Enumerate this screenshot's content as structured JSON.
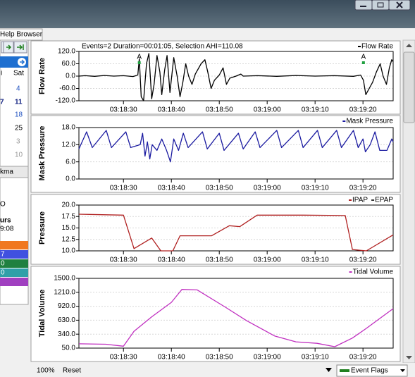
{
  "window": {
    "menu_tab": "Help Browser"
  },
  "left_panel": {
    "items": [
      "i",
      "Sat",
      "4",
      "7",
      "11",
      "18",
      "25",
      "3",
      "10",
      "kma",
      "O",
      "urs",
      "9:08",
      "7",
      "0",
      "0"
    ]
  },
  "chart_data": [
    {
      "type": "line",
      "header": "Events=2 Duration=00:01:05, Selection AHI=110.08",
      "ylabel": "Flow Rate",
      "x": [
        20.7,
        22,
        24,
        26,
        28,
        30,
        32,
        33.0,
        33.3,
        33.7,
        34.2,
        34.8,
        35.3,
        35.9,
        36.4,
        37.0,
        37.6,
        38.0,
        38.6,
        39.1,
        39.7,
        40.5,
        41.2,
        41.8,
        42.4,
        43.0,
        43.6,
        44.3,
        45.0,
        46.2,
        47.0,
        47.6,
        48.3,
        49.0,
        50.0,
        50.8,
        51.5,
        52.2,
        53.5,
        54.5,
        55.0,
        58,
        62,
        66,
        70,
        74,
        78,
        79.5,
        80.1,
        80.6,
        81.3,
        82.0,
        82.8,
        83.6,
        84.2,
        84.9,
        85.5,
        86.0,
        86.3
      ],
      "series": [
        {
          "name": "Flow Rate",
          "color": "#000000",
          "values": [
            0,
            2,
            -1,
            3,
            0,
            2,
            -2,
            5,
            85,
            -100,
            -120,
            60,
            110,
            -110,
            -40,
            100,
            20,
            -90,
            30,
            100,
            -80,
            90,
            0,
            -100,
            -30,
            60,
            0,
            -40,
            10,
            60,
            80,
            20,
            -60,
            -20,
            5,
            40,
            -40,
            -10,
            0,
            10,
            0,
            2,
            -1,
            3,
            0,
            2,
            -1,
            5,
            -20,
            -90,
            -60,
            -30,
            20,
            60,
            0,
            -40,
            40,
            80,
            70
          ]
        }
      ],
      "annotations": [
        {
          "x": 33.3,
          "label": "A"
        },
        {
          "x": 80.1,
          "label": "A"
        }
      ],
      "xlim": [
        20.7,
        86.3
      ],
      "xticks": [
        {
          "value": 30,
          "label": "03:18:30"
        },
        {
          "value": 40,
          "label": "03:18:40"
        },
        {
          "value": 50,
          "label": "03:18:50"
        },
        {
          "value": 60,
          "label": "03:19:00"
        },
        {
          "value": 70,
          "label": "03:19:10"
        },
        {
          "value": 80,
          "label": "03:19:20"
        }
      ],
      "ylim": [
        -120,
        120
      ],
      "yticks": [
        {
          "value": 120,
          "label": "120.0"
        },
        {
          "value": 60,
          "label": "60.0"
        },
        {
          "value": 0,
          "label": "0.0"
        },
        {
          "value": -60,
          "label": "-60.0"
        },
        {
          "value": -120,
          "label": "-120.0"
        }
      ],
      "grid": true
    },
    {
      "type": "line",
      "ylabel": "Mask Pressure",
      "x": [
        20.7,
        22.3,
        23.5,
        26.4,
        27.5,
        30.5,
        31.5,
        33.5,
        34.0,
        34.5,
        35.0,
        35.5,
        36.0,
        37.0,
        38.0,
        39.0,
        39.8,
        40.5,
        41.5,
        42.5,
        43.5,
        46.5,
        47.5,
        50.0,
        51.0,
        54.0,
        55.0,
        57.5,
        58.5,
        62.0,
        63,
        66.5,
        67.5,
        70.5,
        71.5,
        74.5,
        75.5,
        78,
        79,
        80,
        80.5,
        81.5,
        82.5,
        83.5,
        85.0,
        86.0,
        86.3
      ],
      "series": [
        {
          "name": "Mask Pressure",
          "color": "#1a1aa0",
          "values": [
            10.5,
            16.5,
            11,
            17,
            11,
            16.5,
            11,
            12,
            16,
            8,
            13,
            7,
            12,
            10,
            14,
            10,
            6,
            14,
            10,
            16,
            11,
            16.5,
            10.5,
            16,
            10,
            16,
            10.5,
            16.5,
            11,
            17,
            11,
            17,
            11,
            17,
            11,
            17,
            11,
            17,
            11,
            14,
            9.5,
            12,
            16.5,
            10,
            10,
            14,
            13
          ]
        }
      ],
      "xlim": [
        20.7,
        86.3
      ],
      "xticks": [
        {
          "value": 30,
          "label": "03:18:30"
        },
        {
          "value": 40,
          "label": "03:18:40"
        },
        {
          "value": 50,
          "label": "03:18:50"
        },
        {
          "value": 60,
          "label": "03:19:00"
        },
        {
          "value": 70,
          "label": "03:19:10"
        },
        {
          "value": 80,
          "label": "03:19:20"
        }
      ],
      "ylim": [
        0,
        18
      ],
      "yticks": [
        {
          "value": 18,
          "label": "18.0"
        },
        {
          "value": 12,
          "label": "12.0"
        },
        {
          "value": 6,
          "label": "6.0"
        },
        {
          "value": 0,
          "label": "0.0"
        }
      ],
      "grid": true
    },
    {
      "type": "line",
      "ylabel": "Pressure",
      "x": [
        20.7,
        30,
        32.2,
        35.9,
        37.8,
        40.3,
        41.8,
        48.4,
        52.1,
        54.3,
        57.9,
        67.5,
        76.3,
        77.8,
        80.7,
        86.3
      ],
      "series": [
        {
          "name": "IPAP",
          "color": "#b02020",
          "values": [
            18,
            17.8,
            10.5,
            12.8,
            10,
            10,
            13.3,
            13.3,
            15.5,
            15.3,
            17.8,
            17.8,
            17.7,
            10.3,
            10,
            13.5
          ]
        },
        {
          "name": "EPAP",
          "color": "#333333",
          "values": [
            null,
            null,
            null,
            null,
            null,
            null,
            null,
            null,
            null,
            null,
            null,
            null,
            null,
            null,
            null,
            null
          ]
        }
      ],
      "xlim": [
        20.7,
        86.3
      ],
      "xticks": [
        {
          "value": 30,
          "label": "03:18:30"
        },
        {
          "value": 40,
          "label": "03:18:40"
        },
        {
          "value": 50,
          "label": "03:18:50"
        },
        {
          "value": 60,
          "label": "03:19:00"
        },
        {
          "value": 70,
          "label": "03:19:10"
        },
        {
          "value": 80,
          "label": "03:19:20"
        }
      ],
      "ylim": [
        10,
        20
      ],
      "yticks": [
        {
          "value": 20,
          "label": "20.0"
        },
        {
          "value": 17.5,
          "label": "17.5"
        },
        {
          "value": 15,
          "label": "15.0"
        },
        {
          "value": 12.5,
          "label": "12.5"
        },
        {
          "value": 10,
          "label": "10.0"
        }
      ],
      "grid": true
    },
    {
      "type": "line",
      "ylabel": "Tidal Volume",
      "x": [
        20.7,
        26.3,
        30,
        32.2,
        35.9,
        40,
        42.2,
        45.4,
        51.3,
        55.7,
        61.6,
        66,
        70.4,
        74.1,
        77.8,
        80.7,
        86.3
      ],
      "series": [
        {
          "name": "Tidal Volume",
          "color": "#c030c0",
          "values": [
            140,
            130,
            90,
            400,
            700,
            1000,
            1270,
            1260,
            900,
            620,
            300,
            180,
            150,
            80,
            260,
            460,
            870
          ]
        }
      ],
      "xlim": [
        20.7,
        86.3
      ],
      "xticks": [
        {
          "value": 30,
          "label": "03:18:30"
        },
        {
          "value": 40,
          "label": "03:18:40"
        },
        {
          "value": 50,
          "label": "03:18:50"
        },
        {
          "value": 60,
          "label": "03:19:00"
        },
        {
          "value": 70,
          "label": "03:19:10"
        },
        {
          "value": 80,
          "label": "03:19:20"
        }
      ],
      "ylim": [
        50,
        1500
      ],
      "yticks": [
        {
          "value": 1500,
          "label": "1500.0"
        },
        {
          "value": 1210,
          "label": "1210.0"
        },
        {
          "value": 920,
          "label": "920.0"
        },
        {
          "value": 630,
          "label": "630.0"
        },
        {
          "value": 340,
          "label": "340.0"
        },
        {
          "value": 50,
          "label": "50.0"
        }
      ],
      "grid": true
    }
  ],
  "footer": {
    "zoom": "100%",
    "reset": "Reset",
    "dropdown": "Event Flags"
  }
}
